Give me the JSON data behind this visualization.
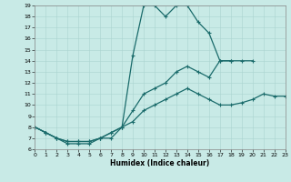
{
  "xlabel": "Humidex (Indice chaleur)",
  "xlim": [
    0,
    23
  ],
  "ylim": [
    6,
    19
  ],
  "xticks": [
    0,
    1,
    2,
    3,
    4,
    5,
    6,
    7,
    8,
    9,
    10,
    11,
    12,
    13,
    14,
    15,
    16,
    17,
    18,
    19,
    20,
    21,
    22,
    23
  ],
  "yticks": [
    6,
    7,
    8,
    9,
    10,
    11,
    12,
    13,
    14,
    15,
    16,
    17,
    18,
    19
  ],
  "background_color": "#c8eae6",
  "grid_color": "#aad4d0",
  "line_color": "#1a6b6b",
  "line1_x": [
    0,
    1,
    2,
    3,
    4,
    5,
    6,
    7,
    8,
    9,
    10,
    11,
    12,
    13,
    14,
    15,
    16,
    17,
    18
  ],
  "line1_y": [
    8,
    7.5,
    7,
    6.5,
    6.5,
    6.5,
    7,
    7,
    8,
    14.5,
    19,
    19,
    18,
    19,
    19,
    17.5,
    16.5,
    14,
    14
  ],
  "line2_x": [
    0,
    1,
    2,
    3,
    4,
    5,
    6,
    7,
    8,
    9,
    10,
    11,
    12,
    13,
    14,
    15,
    16,
    17,
    18,
    19,
    20,
    21,
    22,
    23
  ],
  "line2_y": [
    8,
    7.5,
    7,
    6.7,
    6.7,
    6.7,
    7,
    7.5,
    8,
    9.5,
    11,
    11.5,
    12,
    13,
    13.5,
    13,
    12.5,
    14,
    14,
    14,
    14,
    null,
    null,
    null
  ],
  "line3_x": [
    0,
    1,
    2,
    3,
    4,
    5,
    6,
    7,
    8,
    9,
    10,
    11,
    12,
    13,
    14,
    15,
    16,
    17,
    18,
    19,
    20,
    21,
    22,
    23
  ],
  "line3_y": [
    8,
    7.5,
    7,
    6.7,
    6.7,
    6.7,
    7,
    7.5,
    8,
    8.5,
    9.5,
    10,
    10.5,
    11,
    11.5,
    11,
    10.5,
    10,
    10,
    10.2,
    10.5,
    11,
    10.8,
    10.8
  ]
}
